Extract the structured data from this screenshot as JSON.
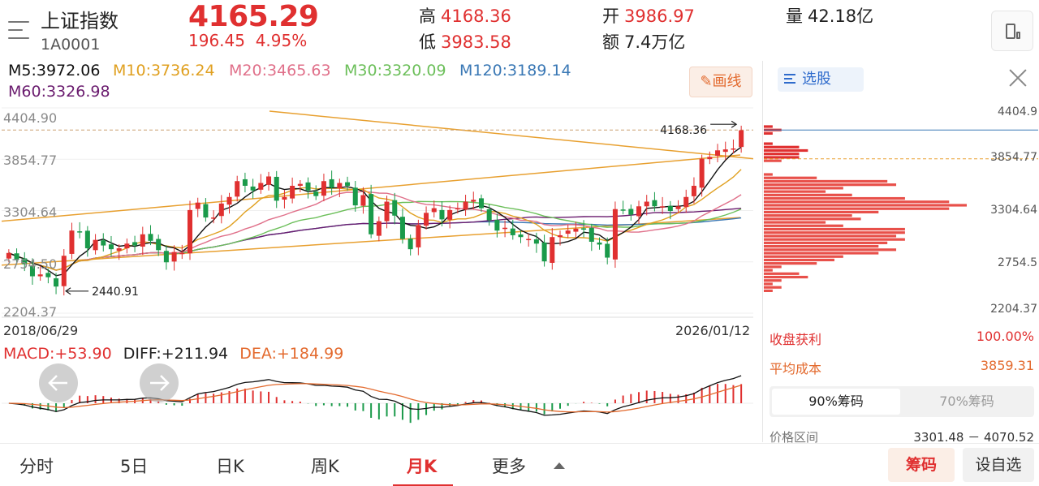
{
  "header": {
    "name": "上证指数",
    "code": "1A0001",
    "price": "4165.29",
    "change": "196.45  4.95%",
    "high_label": "高",
    "high_value": "4168.36",
    "low_label": "低",
    "low_value": "3983.58",
    "open_label": "开",
    "open_value": "3986.97",
    "amount_label": "额",
    "amount_value": "7.4万亿",
    "volume_label": "量",
    "volume_value": "42.18亿"
  },
  "ma_legend": [
    {
      "text": "M5:3972.06",
      "color": "#111111"
    },
    {
      "text": "M10:3736.24",
      "color": "#e0a020"
    },
    {
      "text": "M20:3465.63",
      "color": "#e0708a"
    },
    {
      "text": "M30:3320.09",
      "color": "#6cbf5a"
    },
    {
      "text": "M120:3189.14",
      "color": "#3a78b5"
    },
    {
      "text": "M60:3326.98",
      "color": "#6a1b6e"
    }
  ],
  "draw_button": "画线",
  "y_axis_labels": [
    "4404.90",
    "3854.77",
    "3304.64",
    "2754.50",
    "2204.37"
  ],
  "date_start": "2018/06/29",
  "date_end": "2026/01/12",
  "annotations": {
    "max_label": "4168.36",
    "min_label": "2440.91"
  },
  "macd_legend": {
    "macd": "MACD:+53.90",
    "diff": "DIFF:+211.94",
    "dea": "DEA:+184.99"
  },
  "right_panel": {
    "select_button": "选股",
    "price_labels": [
      "4404.9",
      "3854.77",
      "3304.64",
      "2754.5",
      "2204.37"
    ],
    "profit_label": "收盘获利",
    "profit_value": "100.00%",
    "avg_cost_label": "平均成本",
    "avg_cost_value": "3859.31",
    "tab_90": "90%筹码",
    "tab_70": "70%筹码",
    "range_label": "价格区间",
    "range_value": "3301.48 － 4070.52"
  },
  "tabs": [
    "分时",
    "5日",
    "日K",
    "周K",
    "月K",
    "更多"
  ],
  "active_tab": "月K",
  "chip_button": "筹码",
  "fav_button": "设自选",
  "colors": {
    "up": "#e03030",
    "down": "#1a9a4a",
    "accent": "#e36a2e"
  },
  "chart_data": {
    "type": "candlestick",
    "period": "monthly",
    "start": "2018/06/29",
    "end": "2026/01/12",
    "ylim": [
      2204.37,
      4404.9
    ],
    "max_annotation": 4168.36,
    "min_annotation": 2440.91,
    "close": [
      2850,
      2780,
      2730,
      2600,
      2620,
      2590,
      2490,
      2820,
      3090,
      3080,
      2900,
      2990,
      2930,
      2890,
      2900,
      2950,
      2930,
      3050,
      2980,
      2880,
      2750,
      2860,
      2850,
      3310,
      3390,
      3230,
      3230,
      3380,
      3450,
      3620,
      3570,
      3520,
      3600,
      3670,
      3410,
      3450,
      3570,
      3590,
      3520,
      3460,
      3620,
      3550,
      3600,
      3570,
      3360,
      3470,
      3050,
      3190,
      3400,
      3250,
      3000,
      2890,
      3150,
      3280,
      3330,
      3210,
      3310,
      3330,
      3400,
      3420,
      3330,
      3200,
      3090,
      3120,
      3040,
      3020,
      3000,
      2950,
      2760,
      3020,
      3040,
      3090,
      3110,
      3100,
      2970,
      2940,
      2800,
      3320,
      3310,
      3260,
      3350,
      3400,
      3350,
      3350,
      3300,
      3350,
      3450,
      3570,
      3860,
      3880,
      3950,
      3960,
      3970,
      4165.29
    ]
  }
}
